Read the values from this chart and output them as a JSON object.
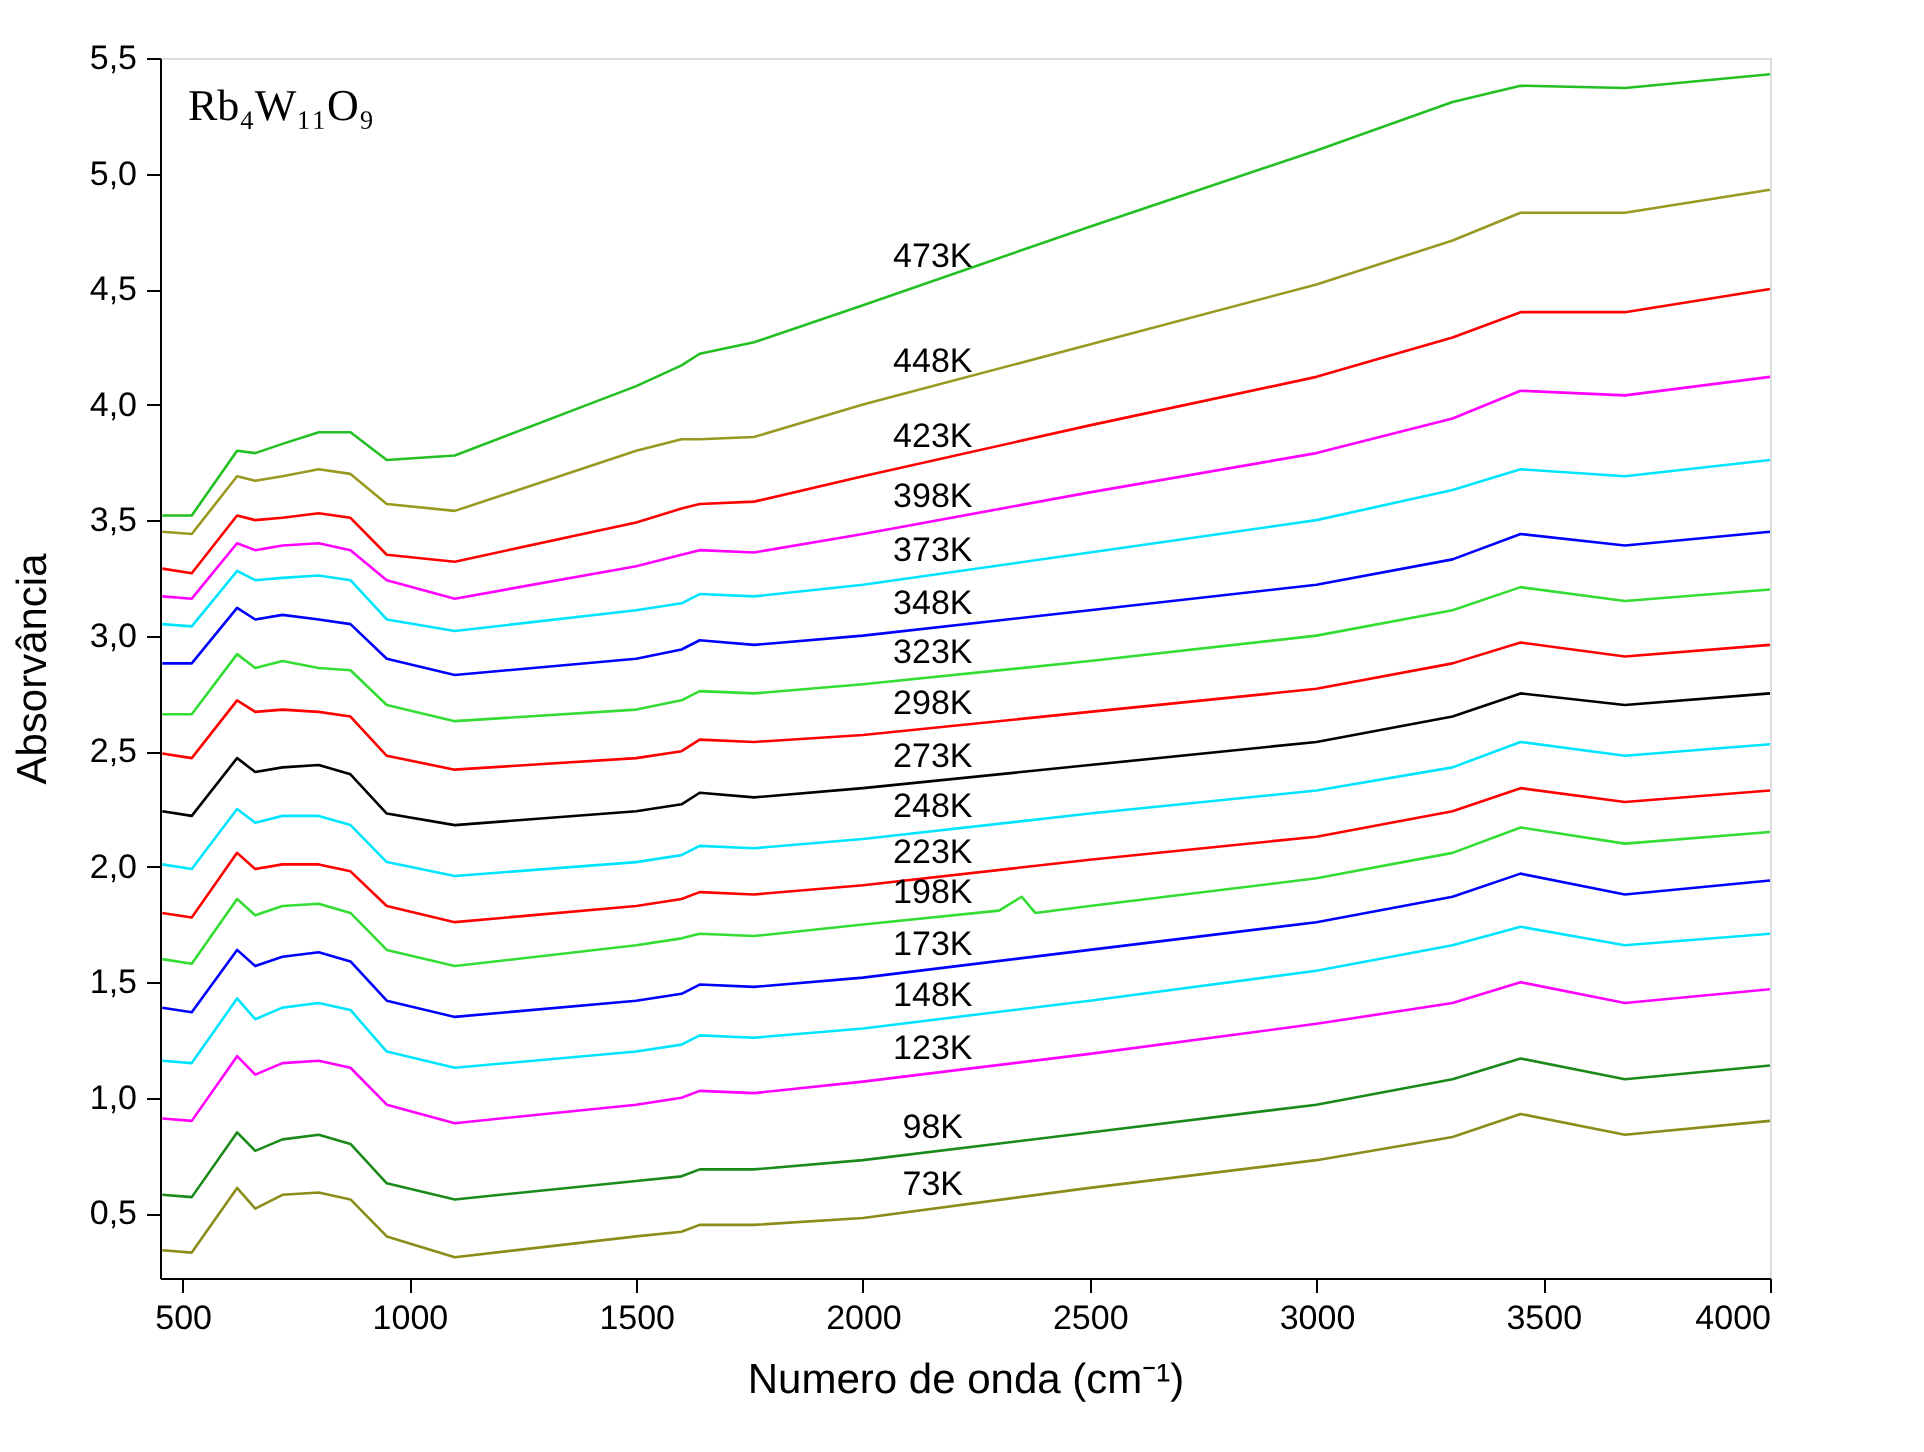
{
  "chart_data": {
    "type": "line",
    "xlabel": "Numero de onda (cm⁻¹)",
    "ylabel": "Absorvância",
    "annotations": [
      "Rb₄W₁₁O₉"
    ],
    "x": [
      455,
      520,
      620,
      660,
      720,
      800,
      870,
      950,
      1100,
      1500,
      1600,
      1640,
      1760,
      2000,
      2500,
      3000,
      3300,
      3450,
      3680,
      4000
    ],
    "xlim": [
      450,
      4000
    ],
    "xticks": [
      500,
      1000,
      1500,
      2000,
      2500,
      3000,
      3500,
      4000
    ],
    "ylim": [
      0.22,
      5.5
    ],
    "yticks": [
      {
        "value": 0.5,
        "label": "0,5"
      },
      {
        "value": 1.0,
        "label": "1,0"
      },
      {
        "value": 1.5,
        "label": "1,5"
      },
      {
        "value": 2.0,
        "label": "2,0"
      },
      {
        "value": 2.5,
        "label": "2,5"
      },
      {
        "value": 3.0,
        "label": "3,0"
      },
      {
        "value": 3.5,
        "label": "3,5"
      },
      {
        "value": 4.0,
        "label": "4,0"
      },
      {
        "value": 4.5,
        "label": "4,5"
      },
      {
        "value": 5.0,
        "label": "5,0"
      },
      {
        "value": 5.5,
        "label": "5,5"
      }
    ],
    "grid": false,
    "marker": "none",
    "line_style": "solid",
    "series": [
      {
        "name": "473K",
        "color": "#22c022",
        "values": [
          3.52,
          3.52,
          3.8,
          3.79,
          3.83,
          3.88,
          3.88,
          3.76,
          3.78,
          4.08,
          4.17,
          4.22,
          4.27,
          4.43,
          4.77,
          5.1,
          5.31,
          5.38,
          5.37,
          5.43
        ]
      },
      {
        "name": "448K",
        "color": "#999922",
        "values": [
          3.45,
          3.44,
          3.69,
          3.67,
          3.69,
          3.72,
          3.7,
          3.57,
          3.54,
          3.8,
          3.85,
          3.85,
          3.86,
          4.0,
          4.26,
          4.52,
          4.71,
          4.83,
          4.83,
          4.93
        ]
      },
      {
        "name": "423K",
        "color": "#ff0000",
        "values": [
          3.29,
          3.27,
          3.52,
          3.5,
          3.51,
          3.53,
          3.51,
          3.35,
          3.32,
          3.49,
          3.55,
          3.57,
          3.58,
          3.69,
          3.91,
          4.12,
          4.29,
          4.4,
          4.4,
          4.5
        ]
      },
      {
        "name": "398K",
        "color": "#ff00ff",
        "values": [
          3.17,
          3.16,
          3.4,
          3.37,
          3.39,
          3.4,
          3.37,
          3.24,
          3.16,
          3.3,
          3.35,
          3.37,
          3.36,
          3.44,
          3.62,
          3.79,
          3.94,
          4.06,
          4.04,
          4.12
        ]
      },
      {
        "name": "373K",
        "color": "#00e5ff",
        "values": [
          3.05,
          3.04,
          3.28,
          3.24,
          3.25,
          3.26,
          3.24,
          3.07,
          3.02,
          3.11,
          3.14,
          3.18,
          3.17,
          3.22,
          3.36,
          3.5,
          3.63,
          3.72,
          3.69,
          3.76
        ]
      },
      {
        "name": "348K",
        "color": "#0000ff",
        "values": [
          2.88,
          2.88,
          3.12,
          3.07,
          3.09,
          3.07,
          3.05,
          2.9,
          2.83,
          2.9,
          2.94,
          2.98,
          2.96,
          3.0,
          3.11,
          3.22,
          3.33,
          3.44,
          3.39,
          3.45
        ]
      },
      {
        "name": "323K",
        "color": "#33dd33",
        "values": [
          2.66,
          2.66,
          2.92,
          2.86,
          2.89,
          2.86,
          2.85,
          2.7,
          2.63,
          2.68,
          2.72,
          2.76,
          2.75,
          2.79,
          2.89,
          3.0,
          3.11,
          3.21,
          3.15,
          3.2
        ]
      },
      {
        "name": "298K",
        "color": "#ff0000",
        "values": [
          2.49,
          2.47,
          2.72,
          2.67,
          2.68,
          2.67,
          2.65,
          2.48,
          2.42,
          2.47,
          2.5,
          2.55,
          2.54,
          2.57,
          2.67,
          2.77,
          2.88,
          2.97,
          2.91,
          2.96
        ]
      },
      {
        "name": "273K",
        "color": "#000000",
        "values": [
          2.24,
          2.22,
          2.47,
          2.41,
          2.43,
          2.44,
          2.4,
          2.23,
          2.18,
          2.24,
          2.27,
          2.32,
          2.3,
          2.34,
          2.44,
          2.54,
          2.65,
          2.75,
          2.7,
          2.75
        ]
      },
      {
        "name": "248K",
        "color": "#00e5ff",
        "values": [
          2.01,
          1.99,
          2.25,
          2.19,
          2.22,
          2.22,
          2.18,
          2.02,
          1.96,
          2.02,
          2.05,
          2.09,
          2.08,
          2.12,
          2.23,
          2.33,
          2.43,
          2.54,
          2.48,
          2.53
        ]
      },
      {
        "name": "223K",
        "color": "#ff0000",
        "values": [
          1.8,
          1.78,
          2.06,
          1.99,
          2.01,
          2.01,
          1.98,
          1.83,
          1.76,
          1.83,
          1.86,
          1.89,
          1.88,
          1.92,
          2.03,
          2.13,
          2.24,
          2.34,
          2.28,
          2.33
        ]
      },
      {
        "name": "198K",
        "color": "#33dd33",
        "x": [
          455,
          520,
          620,
          660,
          720,
          800,
          870,
          950,
          1100,
          1500,
          1600,
          1640,
          1760,
          2000,
          2300,
          2350,
          2380,
          2500,
          3000,
          3300,
          3450,
          3680,
          4000
        ],
        "values": [
          1.6,
          1.58,
          1.86,
          1.79,
          1.83,
          1.84,
          1.8,
          1.64,
          1.57,
          1.66,
          1.69,
          1.71,
          1.7,
          1.75,
          1.81,
          1.87,
          1.8,
          1.83,
          1.95,
          2.06,
          2.17,
          2.1,
          2.15
        ]
      },
      {
        "name": "173K",
        "color": "#0000ff",
        "values": [
          1.39,
          1.37,
          1.64,
          1.57,
          1.61,
          1.63,
          1.59,
          1.42,
          1.35,
          1.42,
          1.45,
          1.49,
          1.48,
          1.52,
          1.64,
          1.76,
          1.87,
          1.97,
          1.88,
          1.94
        ]
      },
      {
        "name": "148K",
        "color": "#00e5ff",
        "values": [
          1.16,
          1.15,
          1.43,
          1.34,
          1.39,
          1.41,
          1.38,
          1.2,
          1.13,
          1.2,
          1.23,
          1.27,
          1.26,
          1.3,
          1.42,
          1.55,
          1.66,
          1.74,
          1.66,
          1.71
        ]
      },
      {
        "name": "123K",
        "color": "#ff00ff",
        "values": [
          0.91,
          0.9,
          1.18,
          1.1,
          1.15,
          1.16,
          1.13,
          0.97,
          0.89,
          0.97,
          1.0,
          1.03,
          1.02,
          1.07,
          1.19,
          1.32,
          1.41,
          1.5,
          1.41,
          1.47
        ]
      },
      {
        "name": "98K",
        "color": "#1a8a1a",
        "values": [
          0.58,
          0.57,
          0.85,
          0.77,
          0.82,
          0.84,
          0.8,
          0.63,
          0.56,
          0.64,
          0.66,
          0.69,
          0.69,
          0.73,
          0.85,
          0.97,
          1.08,
          1.17,
          1.08,
          1.14
        ]
      },
      {
        "name": "73K",
        "color": "#8c8c1a",
        "values": [
          0.34,
          0.33,
          0.61,
          0.52,
          0.58,
          0.59,
          0.56,
          0.4,
          0.31,
          0.4,
          0.42,
          0.45,
          0.45,
          0.48,
          0.61,
          0.73,
          0.83,
          0.93,
          0.84,
          0.9
        ]
      }
    ]
  }
}
